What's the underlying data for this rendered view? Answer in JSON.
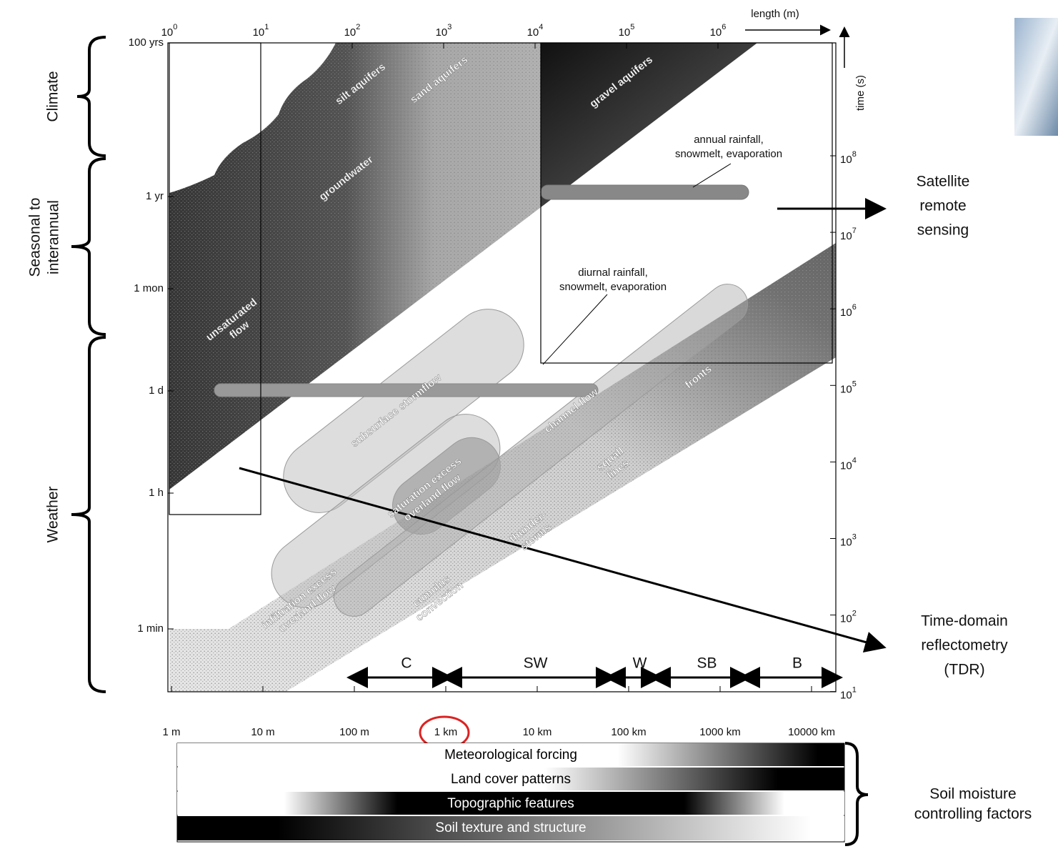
{
  "top_axis": {
    "label": "length (m)",
    "ticks": [
      {
        "base": "10",
        "exp": "0"
      },
      {
        "base": "10",
        "exp": "1"
      },
      {
        "base": "10",
        "exp": "2"
      },
      {
        "base": "10",
        "exp": "3"
      },
      {
        "base": "10",
        "exp": "4"
      },
      {
        "base": "10",
        "exp": "5"
      },
      {
        "base": "10",
        "exp": "6"
      }
    ]
  },
  "right_axis": {
    "label": "time (s)",
    "ticks": [
      {
        "base": "10",
        "exp": "8"
      },
      {
        "base": "10",
        "exp": "7"
      },
      {
        "base": "10",
        "exp": "6"
      },
      {
        "base": "10",
        "exp": "5"
      },
      {
        "base": "10",
        "exp": "4"
      },
      {
        "base": "10",
        "exp": "3"
      },
      {
        "base": "10",
        "exp": "2"
      },
      {
        "base": "10",
        "exp": "1"
      }
    ]
  },
  "left_axis": {
    "ticks": [
      "100 yrs",
      "1 yr",
      "1 mon",
      "1 d",
      "1 h",
      "1 min"
    ]
  },
  "bottom_axis": {
    "ticks": [
      "1 m",
      "10 m",
      "100 m",
      "1 km",
      "10 km",
      "100 km",
      "1000 km",
      "10000 km"
    ]
  },
  "timescales": [
    {
      "lines": [
        "Climate"
      ]
    },
    {
      "lines": [
        "Seasonal to",
        "interannual"
      ]
    },
    {
      "lines": [
        "Weather"
      ]
    }
  ],
  "processes": [
    {
      "lines": [
        "silt aquifers"
      ]
    },
    {
      "lines": [
        "sand aquifers"
      ]
    },
    {
      "lines": [
        "gravel aquifers"
      ]
    },
    {
      "lines": [
        "groundwater"
      ]
    },
    {
      "lines": [
        "unsaturated",
        "flow"
      ]
    },
    {
      "lines": [
        "subsurface stormflow"
      ]
    },
    {
      "lines": [
        "saturation excess",
        "overland flow"
      ]
    },
    {
      "lines": [
        "channel flow"
      ]
    },
    {
      "lines": [
        "infiltration excess",
        "overland flow"
      ]
    },
    {
      "lines": [
        "cumulus",
        "convection"
      ]
    },
    {
      "lines": [
        "thunder-",
        "storms"
      ]
    },
    {
      "lines": [
        "squall",
        "lines"
      ]
    },
    {
      "lines": [
        "fronts"
      ]
    }
  ],
  "rainfall_notes": [
    {
      "lines": [
        "annual rainfall,",
        "snowmelt, evaporation"
      ]
    },
    {
      "lines": [
        "diurnal rainfall,",
        "snowmelt, evaporation"
      ]
    }
  ],
  "ranges": [
    "C",
    "SW",
    "W",
    "SB",
    "B"
  ],
  "factors": {
    "title": [
      "Soil moisture",
      "controlling factors"
    ],
    "items": [
      "Meteorological forcing",
      "Land cover patterns",
      "Topographic features",
      "Soil texture and structure"
    ]
  },
  "methods": [
    {
      "lines": [
        "Satellite",
        "remote",
        "sensing"
      ]
    },
    {
      "lines": [
        "Time-domain",
        "reflectometry",
        "(TDR)"
      ]
    }
  ]
}
